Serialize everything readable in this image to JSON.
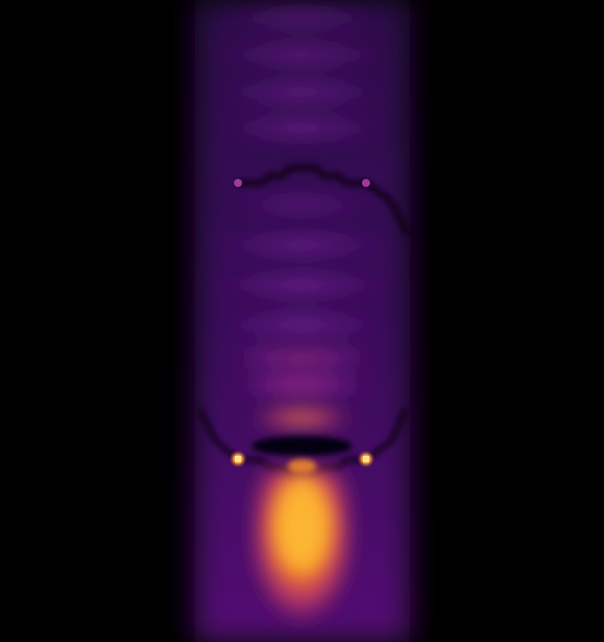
{
  "image": {
    "kind": "simulated field-intensity map",
    "colormap": "inferno",
    "colors": {
      "background": "#000000",
      "low": "#2a0845",
      "mid": "#7a1fa0",
      "high": "#e8552f",
      "peak": "#fcb431",
      "hot_spot": "#ffe08a"
    }
  }
}
